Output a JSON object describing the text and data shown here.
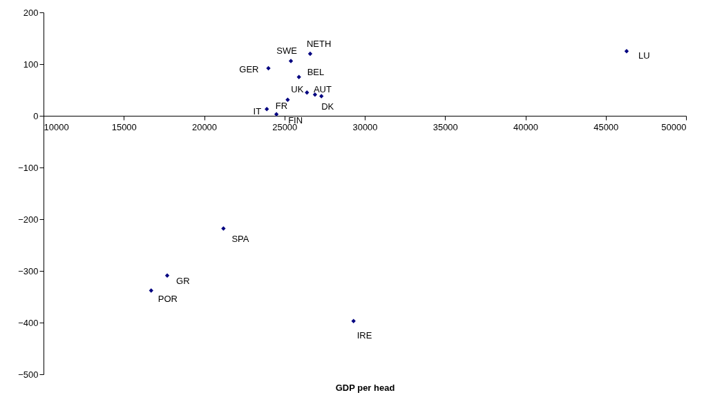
{
  "chart_data": {
    "type": "scatter",
    "xlabel": "GDP per head",
    "marker": "diamond",
    "grid": false,
    "xlim": [
      10000,
      50000
    ],
    "xticks": [
      10000,
      15000,
      20000,
      25000,
      30000,
      35000,
      40000,
      45000,
      50000
    ],
    "ylim": [
      -500,
      200
    ],
    "yticks": [
      -500,
      -400,
      -300,
      -200,
      -100,
      0,
      100,
      200
    ],
    "x": [
      26600,
      25400,
      24000,
      25900,
      26400,
      26900,
      27300,
      25200,
      23900,
      24500,
      46300,
      21200,
      17700,
      16700,
      29300
    ],
    "series": [
      {
        "color": "#000080",
        "values": [
          120,
          106,
          92,
          75,
          45,
          41,
          38,
          31,
          13,
          3,
          125,
          -218,
          -309,
          -338,
          -397
        ]
      }
    ],
    "annotations": [
      {
        "text": "NETH",
        "x": 26600,
        "y": 120
      },
      {
        "text": "SWE",
        "x": 25400,
        "y": 106
      },
      {
        "text": "GER",
        "x": 24000,
        "y": 92
      },
      {
        "text": "BEL",
        "x": 25900,
        "y": 75
      },
      {
        "text": "UK",
        "x": 26400,
        "y": 45
      },
      {
        "text": "AUT",
        "x": 26900,
        "y": 41
      },
      {
        "text": "DK",
        "x": 27300,
        "y": 38
      },
      {
        "text": "FR",
        "x": 25200,
        "y": 31
      },
      {
        "text": "IT",
        "x": 23900,
        "y": 13
      },
      {
        "text": "FIN",
        "x": 24500,
        "y": 3
      },
      {
        "text": "LU",
        "x": 46300,
        "y": 125
      },
      {
        "text": "SPA",
        "x": 21200,
        "y": -218
      },
      {
        "text": "GR",
        "x": 17700,
        "y": -309
      },
      {
        "text": "POR",
        "x": 16700,
        "y": -338
      },
      {
        "text": "IRE",
        "x": 29300,
        "y": -397
      }
    ]
  }
}
